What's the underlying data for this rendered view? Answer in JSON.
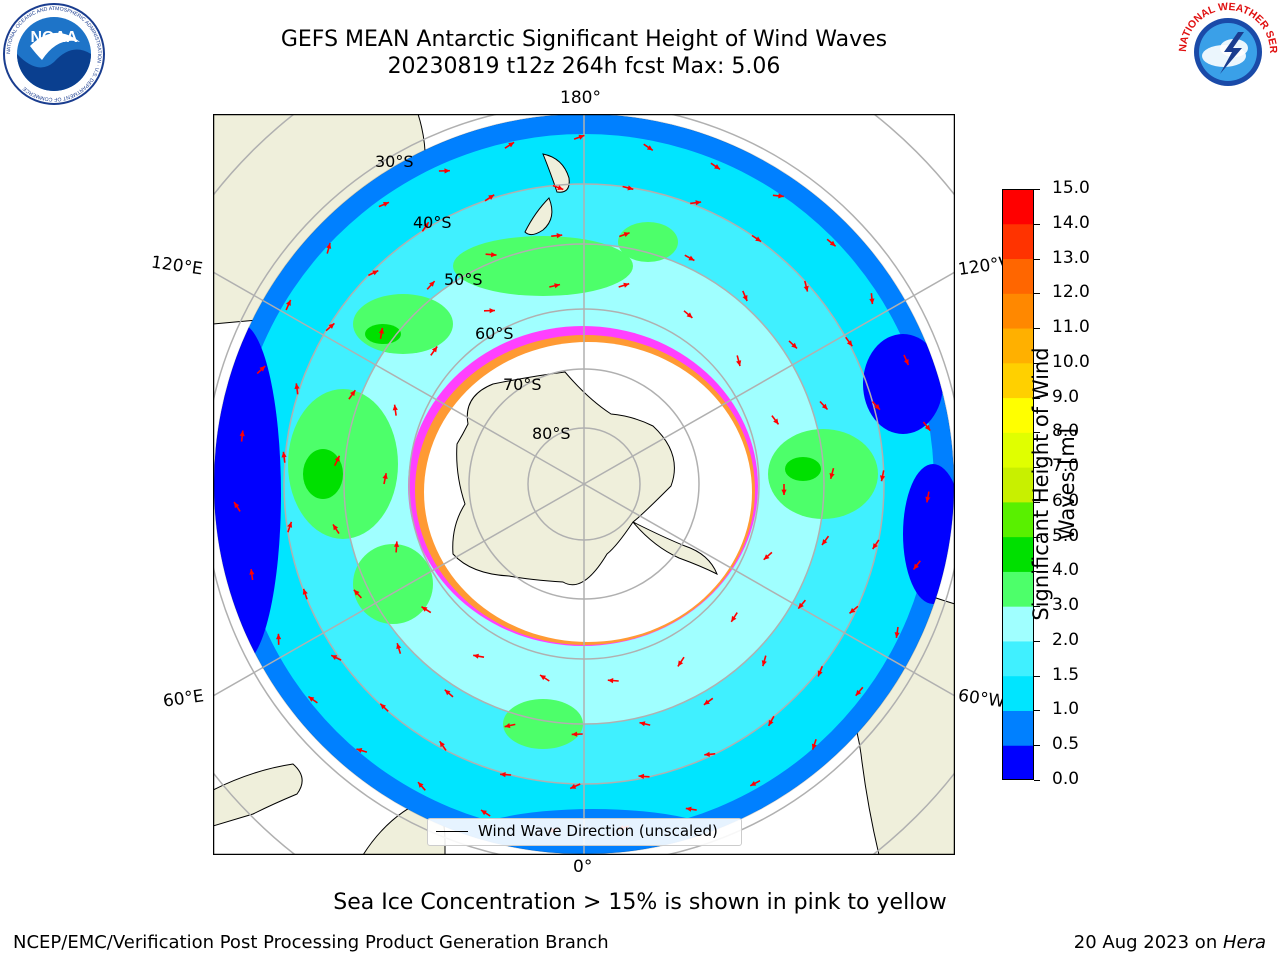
{
  "title": {
    "line1": "GEFS MEAN Antarctic Significant Height of Wind Waves",
    "line2": "20230819 t12z 264h fcst   Max: 5.06"
  },
  "logos": {
    "left": "NOAA",
    "left_ring_text": "NATIONAL OCEANIC AND ATMOSPHERIC ADMINISTRATION · U.S. DEPARTMENT OF COMMERCE",
    "right_ring_text": "NATIONAL WEATHER SERVICE"
  },
  "map": {
    "projection": "south-polar-stereographic",
    "longitude_labels": {
      "top": "180°",
      "bottom": "0°",
      "upper_left": "120°E",
      "upper_right": "120°W",
      "lower_left": "60°E",
      "lower_right": "60°W"
    },
    "latitude_labels": [
      "30°S",
      "40°S",
      "50°S",
      "60°S",
      "70°S",
      "80°S"
    ],
    "legend_label": "Wind Wave Direction (unscaled)"
  },
  "colorbar": {
    "title": "Significant Height of Wind Waves [m]",
    "ticks": [
      "0.0",
      "0.5",
      "1.0",
      "1.5",
      "2.0",
      "3.0",
      "4.0",
      "5.0",
      "6.0",
      "7.0",
      "8.0",
      "9.0",
      "10.0",
      "11.0",
      "12.0",
      "13.0",
      "14.0",
      "15.0"
    ],
    "colors": [
      "#0000ff",
      "#0080ff",
      "#00e5ff",
      "#40f0ff",
      "#a0ffff",
      "#4dff6a",
      "#00e000",
      "#59f000",
      "#c8f000",
      "#e0ff00",
      "#ffff00",
      "#ffd000",
      "#ffb000",
      "#ff8800",
      "#ff6600",
      "#ff3300",
      "#ff0000"
    ]
  },
  "colors": {
    "land": "#efefdb",
    "ice": "#ffffff",
    "sea_ice_pink": "#ff40ff",
    "sea_ice_orange": "#ffb000",
    "arrow": "#ff0000",
    "grid": "#b0b0b0"
  },
  "footer": {
    "note": "Sea Ice Concentration > 15% is shown in pink to yellow",
    "credit": "NCEP/EMC/Verification Post Processing Product Generation Branch",
    "date": "20 Aug 2023 on ",
    "machine": "Hera"
  }
}
